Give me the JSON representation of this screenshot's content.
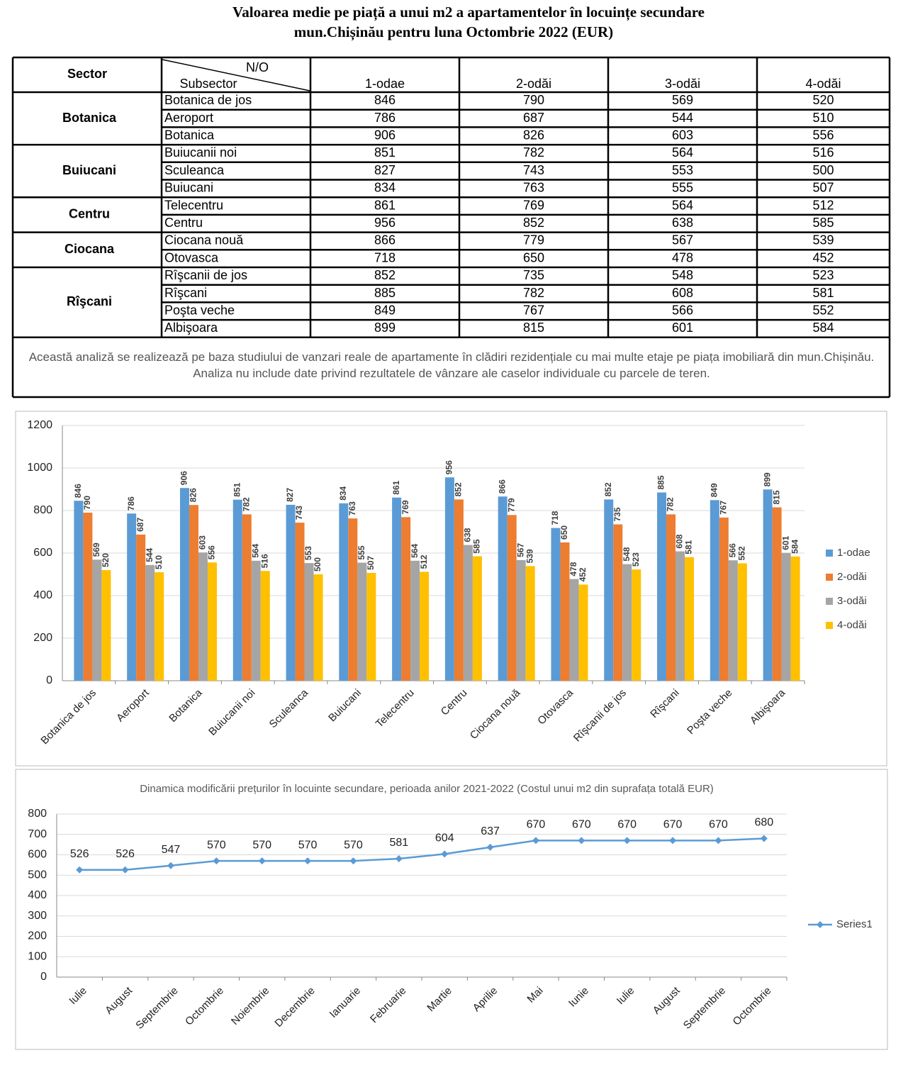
{
  "header": {
    "title_line1": "Valoarea medie pe piață a unui m2 a apartamentelor în locuințe secundare",
    "title_line2": "mun.Chișinău pentru luna Octombrie 2022 (EUR)"
  },
  "table": {
    "header": {
      "sector": "Sector",
      "no": "N/O",
      "subsector": "Subsector",
      "rooms": [
        "1-odae",
        "2-odăi",
        "3-odăi",
        "4-odăi"
      ]
    },
    "groups": [
      {
        "sector": "Botanica",
        "rows": [
          {
            "subsector": "Botanica de jos",
            "values": [
              846,
              790,
              569,
              520
            ]
          },
          {
            "subsector": "Aeroport",
            "values": [
              786,
              687,
              544,
              510
            ]
          },
          {
            "subsector": "Botanica",
            "values": [
              906,
              826,
              603,
              556
            ]
          }
        ]
      },
      {
        "sector": "Buiucani",
        "rows": [
          {
            "subsector": "Buiucanii noi",
            "values": [
              851,
              782,
              564,
              516
            ]
          },
          {
            "subsector": "Sculeanca",
            "values": [
              827,
              743,
              553,
              500
            ]
          },
          {
            "subsector": "Buiucani",
            "values": [
              834,
              763,
              555,
              507
            ]
          }
        ]
      },
      {
        "sector": "Centru",
        "rows": [
          {
            "subsector": "Telecentru",
            "values": [
              861,
              769,
              564,
              512
            ]
          },
          {
            "subsector": "Centru",
            "values": [
              956,
              852,
              638,
              585
            ]
          }
        ]
      },
      {
        "sector": "Ciocana",
        "rows": [
          {
            "subsector": "Ciocana nouă",
            "values": [
              866,
              779,
              567,
              539
            ]
          },
          {
            "subsector": "Otovasca",
            "values": [
              718,
              650,
              478,
              452
            ]
          }
        ]
      },
      {
        "sector": "Rîşcani",
        "rows": [
          {
            "subsector": "Rîşcanii de jos",
            "values": [
              852,
              735,
              548,
              523
            ]
          },
          {
            "subsector": "Rîşcani",
            "values": [
              885,
              782,
              608,
              581
            ]
          },
          {
            "subsector": "Poşta veche",
            "values": [
              849,
              767,
              566,
              552
            ]
          },
          {
            "subsector": "Albişoara",
            "values": [
              899,
              815,
              601,
              584
            ]
          }
        ]
      }
    ],
    "note": "Această analiză se realizează pe baza studiului de vanzari reale de apartamente în clădiri rezidențiale cu mai multe etaje pe piața imobiliară din mun.Chișinău. Analiza nu include date privind rezultatele de vânzare ale caselor individuale cu parcele de teren."
  },
  "chart_data": [
    {
      "type": "bar",
      "categories": [
        "Botanica de jos",
        "Aeroport",
        "Botanica",
        "Buiucanii noi",
        "Sculeanca",
        "Buiucani",
        "Telecentru",
        "Centru",
        "Ciocana nouă",
        "Otovasca",
        "Rîşcanii de jos",
        "Rîşcani",
        "Poşta veche",
        "Albişoara"
      ],
      "series": [
        {
          "name": "1-odae",
          "color": "#5b9bd5",
          "values": [
            846,
            786,
            906,
            851,
            827,
            834,
            861,
            956,
            866,
            718,
            852,
            885,
            849,
            899
          ]
        },
        {
          "name": "2-odăi",
          "color": "#ed7d31",
          "values": [
            790,
            687,
            826,
            782,
            743,
            763,
            769,
            852,
            779,
            650,
            735,
            782,
            767,
            815
          ]
        },
        {
          "name": "3-odăi",
          "color": "#a5a5a5",
          "values": [
            569,
            544,
            603,
            564,
            553,
            555,
            564,
            638,
            567,
            478,
            548,
            608,
            566,
            601
          ]
        },
        {
          "name": "4-odăi",
          "color": "#ffc000",
          "values": [
            520,
            510,
            556,
            516,
            500,
            507,
            512,
            585,
            539,
            452,
            523,
            581,
            552,
            584
          ]
        }
      ],
      "ylim": [
        0,
        1200
      ],
      "yticks": [
        0,
        200,
        400,
        600,
        800,
        1000,
        1200
      ],
      "grid": true,
      "legend": "right"
    },
    {
      "type": "line",
      "title": "Dinamica modificării prețurilor în locuinte secundare, perioada anilor 2021-2022 (Costul unui m2 din suprafața totală EUR)",
      "categories": [
        "Iulie",
        "August",
        "Septembrie",
        "Octombrie",
        "Noiembrie",
        "Decembrie",
        "Ianuarie",
        "Februarie",
        "Martie",
        "Aprilie",
        "Mai",
        "Iunie",
        "Iulie",
        "August",
        "Septembrie",
        "Octombrie"
      ],
      "series": [
        {
          "name": "Series1",
          "color": "#5b9bd5",
          "values": [
            526,
            526,
            547,
            570,
            570,
            570,
            570,
            581,
            604,
            637,
            670,
            670,
            670,
            670,
            670,
            680
          ]
        }
      ],
      "ylim": [
        0,
        800
      ],
      "yticks": [
        0,
        100,
        200,
        300,
        400,
        500,
        600,
        700,
        800
      ],
      "grid": true,
      "legend": "right"
    }
  ]
}
